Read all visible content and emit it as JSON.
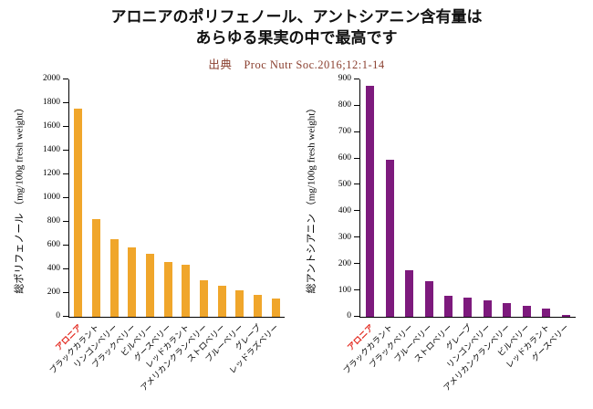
{
  "title": {
    "line1": "アロニアのポリフェノール、アントシアニン含有量は",
    "line2": "あらゆる果実の中で最高です"
  },
  "source": "出典　Proc Nutr Soc.2016;12:1-14",
  "colors": {
    "left_bar": "#F0A62B",
    "right_bar": "#7D1A7D",
    "highlight_label": "#E2251B",
    "source_text": "#8B4030",
    "axis": "#000000",
    "background": "#FFFFFF"
  },
  "chart_data": [
    {
      "type": "bar",
      "title": "",
      "xlabel": "",
      "ylabel": "総ポリフェノール （mg/100g fresh weight）",
      "ylim": [
        0,
        2000
      ],
      "ytick_step": 200,
      "grid": false,
      "legend": "none",
      "bar_color": "#F0A62B",
      "highlight_index": 0,
      "highlight_color": "#E2251B",
      "categories": [
        "アロニア",
        "ブラックカラント",
        "リンゴンベリー",
        "ブラックベリー",
        "ビルベリー",
        "グースベリー",
        "レッドカラント",
        "アメリカンクランベリー",
        "ストロベリー",
        "ブルーベリー",
        "グレープ",
        "レッドラズベリー"
      ],
      "values": [
        1750,
        820,
        650,
        580,
        530,
        460,
        440,
        310,
        260,
        225,
        180,
        150
      ]
    },
    {
      "type": "bar",
      "title": "",
      "xlabel": "",
      "ylabel": "総アントシアニン （mg/100g fresh weight）",
      "ylim": [
        0,
        900
      ],
      "ytick_step": 100,
      "grid": false,
      "legend": "none",
      "bar_color": "#7D1A7D",
      "highlight_index": 0,
      "highlight_color": "#E2251B",
      "categories": [
        "アロニア",
        "ブラックカラント",
        "ブラックベリー",
        "ブルーベリー",
        "ストロベリー",
        "グレープ",
        "リンゴンベリー",
        "アメリカンクランベリー",
        "ビルベリー",
        "レッドカラント",
        "グースベリー"
      ],
      "values": [
        875,
        595,
        175,
        135,
        80,
        72,
        62,
        52,
        42,
        30,
        8
      ]
    }
  ]
}
